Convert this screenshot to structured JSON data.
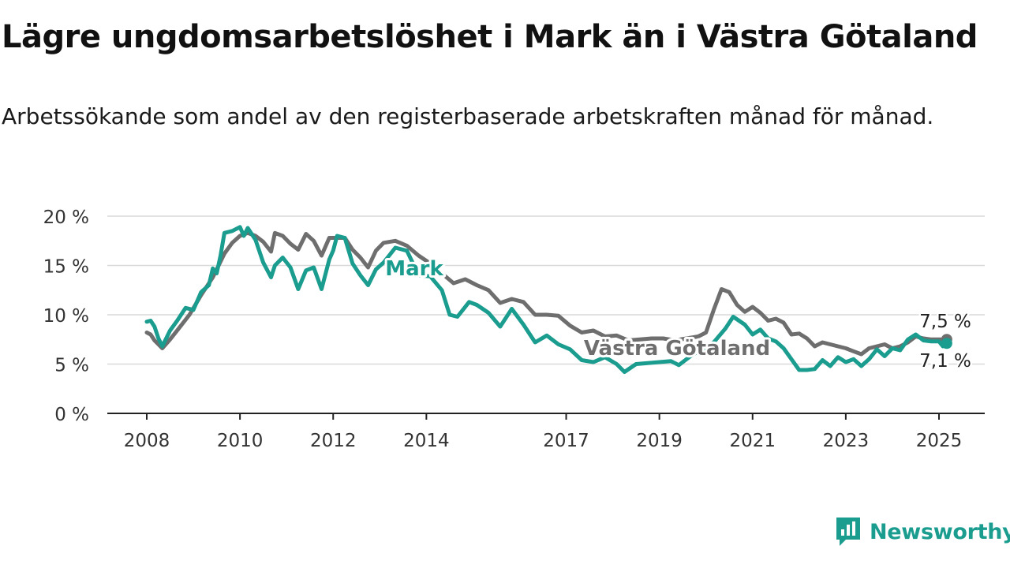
{
  "header": {
    "title": "Lägre ungdomsarbetslöshet i Mark än i Västra Götaland",
    "subtitle": "Arbetssökande som andel av den registerbaserade arbetskraften månad för månad."
  },
  "brand": {
    "name": "Newsworthy",
    "icon": "newsworthy-logo-icon",
    "color": "#1a9c8f"
  },
  "chart_data": {
    "type": "line",
    "title": "Lägre ungdomsarbetslöshet i Mark än i Västra Götaland",
    "subtitle": "Arbetssökande som andel av den registerbaserade arbetskraften månad för månad.",
    "xlabel": "",
    "ylabel": "",
    "x_ticks": [
      "2008",
      "2010",
      "2012",
      "2014",
      "2017",
      "2019",
      "2021",
      "2023",
      "2025"
    ],
    "y_ticks": [
      "0 %",
      "5 %",
      "10 %",
      "15 %",
      "20 %"
    ],
    "xlim": [
      "2008-01",
      "2025-03"
    ],
    "ylim": [
      0,
      20
    ],
    "grid": "horizontal",
    "legend": "inline labels",
    "series": [
      {
        "name": "Västra Götaland",
        "color": "#6e6e6e",
        "end_label": "7,5 %",
        "points": [
          [
            "2008-01",
            8.2
          ],
          [
            "2008-02",
            8.0
          ],
          [
            "2008-03",
            7.4
          ],
          [
            "2008-04",
            7.0
          ],
          [
            "2008-05",
            6.6
          ],
          [
            "2008-07",
            7.5
          ],
          [
            "2008-09",
            8.5
          ],
          [
            "2008-12",
            10.0
          ],
          [
            "2009-03",
            12.0
          ],
          [
            "2009-06",
            13.8
          ],
          [
            "2009-09",
            16.2
          ],
          [
            "2009-11",
            17.3
          ],
          [
            "2010-01",
            18.0
          ],
          [
            "2010-03",
            18.3
          ],
          [
            "2010-05",
            18.0
          ],
          [
            "2010-07",
            17.4
          ],
          [
            "2010-09",
            16.4
          ],
          [
            "2010-10",
            18.3
          ],
          [
            "2010-12",
            18.0
          ],
          [
            "2011-02",
            17.2
          ],
          [
            "2011-04",
            16.6
          ],
          [
            "2011-06",
            18.2
          ],
          [
            "2011-08",
            17.5
          ],
          [
            "2011-10",
            16.0
          ],
          [
            "2011-12",
            17.8
          ],
          [
            "2012-02",
            17.8
          ],
          [
            "2012-04",
            17.8
          ],
          [
            "2012-06",
            16.6
          ],
          [
            "2012-08",
            15.8
          ],
          [
            "2012-10",
            14.8
          ],
          [
            "2012-12",
            16.5
          ],
          [
            "2013-02",
            17.3
          ],
          [
            "2013-05",
            17.5
          ],
          [
            "2013-08",
            17.0
          ],
          [
            "2013-11",
            16.0
          ],
          [
            "2014-02",
            15.2
          ],
          [
            "2014-05",
            14.2
          ],
          [
            "2014-08",
            13.2
          ],
          [
            "2014-11",
            13.6
          ],
          [
            "2015-02",
            13.0
          ],
          [
            "2015-05",
            12.5
          ],
          [
            "2015-08",
            11.2
          ],
          [
            "2015-11",
            11.6
          ],
          [
            "2016-02",
            11.3
          ],
          [
            "2016-05",
            10.0
          ],
          [
            "2016-08",
            10.0
          ],
          [
            "2016-11",
            9.9
          ],
          [
            "2017-02",
            8.9
          ],
          [
            "2017-05",
            8.2
          ],
          [
            "2017-08",
            8.4
          ],
          [
            "2017-11",
            7.8
          ],
          [
            "2018-02",
            7.9
          ],
          [
            "2018-05",
            7.4
          ],
          [
            "2018-08",
            7.5
          ],
          [
            "2018-11",
            7.6
          ],
          [
            "2019-02",
            7.6
          ],
          [
            "2019-05",
            7.4
          ],
          [
            "2019-08",
            7.6
          ],
          [
            "2019-11",
            7.8
          ],
          [
            "2020-01",
            8.2
          ],
          [
            "2020-03",
            10.5
          ],
          [
            "2020-05",
            12.6
          ],
          [
            "2020-07",
            12.3
          ],
          [
            "2020-09",
            11.0
          ],
          [
            "2020-11",
            10.3
          ],
          [
            "2021-01",
            10.8
          ],
          [
            "2021-03",
            10.2
          ],
          [
            "2021-05",
            9.4
          ],
          [
            "2021-07",
            9.6
          ],
          [
            "2021-09",
            9.2
          ],
          [
            "2021-11",
            8.0
          ],
          [
            "2022-01",
            8.1
          ],
          [
            "2022-03",
            7.6
          ],
          [
            "2022-05",
            6.8
          ],
          [
            "2022-07",
            7.2
          ],
          [
            "2022-09",
            7.0
          ],
          [
            "2022-11",
            6.8
          ],
          [
            "2023-01",
            6.6
          ],
          [
            "2023-03",
            6.3
          ],
          [
            "2023-05",
            6.0
          ],
          [
            "2023-07",
            6.6
          ],
          [
            "2023-09",
            6.8
          ],
          [
            "2023-11",
            7.0
          ],
          [
            "2024-01",
            6.6
          ],
          [
            "2024-03",
            6.8
          ],
          [
            "2024-05",
            7.2
          ],
          [
            "2024-07",
            7.8
          ],
          [
            "2024-09",
            7.6
          ],
          [
            "2024-11",
            7.5
          ],
          [
            "2025-01",
            7.5
          ],
          [
            "2025-03",
            7.5
          ]
        ]
      },
      {
        "name": "Mark",
        "color": "#1a9c8f",
        "end_label": "7,1 %",
        "points": [
          [
            "2008-01",
            9.3
          ],
          [
            "2008-02",
            9.4
          ],
          [
            "2008-03",
            8.8
          ],
          [
            "2008-04",
            7.6
          ],
          [
            "2008-05",
            6.8
          ],
          [
            "2008-07",
            8.4
          ],
          [
            "2008-09",
            9.5
          ],
          [
            "2008-11",
            10.7
          ],
          [
            "2009-01",
            10.5
          ],
          [
            "2009-03",
            12.3
          ],
          [
            "2009-05",
            13.0
          ],
          [
            "2009-06",
            14.7
          ],
          [
            "2009-07",
            14.2
          ],
          [
            "2009-08",
            16.0
          ],
          [
            "2009-09",
            18.3
          ],
          [
            "2009-11",
            18.5
          ],
          [
            "2010-01",
            18.9
          ],
          [
            "2010-02",
            18.0
          ],
          [
            "2010-03",
            18.8
          ],
          [
            "2010-05",
            17.6
          ],
          [
            "2010-07",
            15.3
          ],
          [
            "2010-09",
            13.8
          ],
          [
            "2010-10",
            15.0
          ],
          [
            "2010-12",
            15.8
          ],
          [
            "2011-02",
            14.8
          ],
          [
            "2011-04",
            12.6
          ],
          [
            "2011-06",
            14.5
          ],
          [
            "2011-08",
            14.8
          ],
          [
            "2011-10",
            12.6
          ],
          [
            "2011-12",
            15.6
          ],
          [
            "2012-01",
            16.5
          ],
          [
            "2012-02",
            18.0
          ],
          [
            "2012-04",
            17.8
          ],
          [
            "2012-06",
            15.2
          ],
          [
            "2012-08",
            14.0
          ],
          [
            "2012-10",
            13.0
          ],
          [
            "2012-12",
            14.6
          ],
          [
            "2013-02",
            15.3
          ],
          [
            "2013-05",
            16.8
          ],
          [
            "2013-08",
            16.5
          ],
          [
            "2013-11",
            14.0
          ],
          [
            "2014-02",
            13.9
          ],
          [
            "2014-05",
            12.5
          ],
          [
            "2014-07",
            10.0
          ],
          [
            "2014-09",
            9.8
          ],
          [
            "2014-12",
            11.3
          ],
          [
            "2015-02",
            11.0
          ],
          [
            "2015-05",
            10.2
          ],
          [
            "2015-08",
            8.8
          ],
          [
            "2015-11",
            10.6
          ],
          [
            "2016-02",
            9.0
          ],
          [
            "2016-05",
            7.2
          ],
          [
            "2016-08",
            7.9
          ],
          [
            "2016-11",
            7.0
          ],
          [
            "2017-02",
            6.5
          ],
          [
            "2017-05",
            5.4
          ],
          [
            "2017-08",
            5.2
          ],
          [
            "2017-11",
            5.7
          ],
          [
            "2018-02",
            5.0
          ],
          [
            "2018-04",
            4.2
          ],
          [
            "2018-07",
            5.0
          ],
          [
            "2018-10",
            5.1
          ],
          [
            "2019-01",
            5.2
          ],
          [
            "2019-04",
            5.3
          ],
          [
            "2019-06",
            4.9
          ],
          [
            "2019-09",
            5.8
          ],
          [
            "2019-12",
            6.5
          ],
          [
            "2020-03",
            7.2
          ],
          [
            "2020-06",
            8.6
          ],
          [
            "2020-08",
            9.8
          ],
          [
            "2020-11",
            9.0
          ],
          [
            "2021-01",
            8.0
          ],
          [
            "2021-03",
            8.5
          ],
          [
            "2021-05",
            7.6
          ],
          [
            "2021-07",
            7.3
          ],
          [
            "2021-09",
            6.6
          ],
          [
            "2021-11",
            5.5
          ],
          [
            "2022-01",
            4.4
          ],
          [
            "2022-03",
            4.4
          ],
          [
            "2022-05",
            4.5
          ],
          [
            "2022-07",
            5.4
          ],
          [
            "2022-09",
            4.8
          ],
          [
            "2022-11",
            5.7
          ],
          [
            "2023-01",
            5.2
          ],
          [
            "2023-03",
            5.5
          ],
          [
            "2023-05",
            4.8
          ],
          [
            "2023-07",
            5.5
          ],
          [
            "2023-09",
            6.5
          ],
          [
            "2023-11",
            5.8
          ],
          [
            "2024-01",
            6.6
          ],
          [
            "2024-03",
            6.4
          ],
          [
            "2024-05",
            7.5
          ],
          [
            "2024-07",
            8.0
          ],
          [
            "2024-09",
            7.4
          ],
          [
            "2024-11",
            7.3
          ],
          [
            "2025-01",
            7.3
          ],
          [
            "2025-02",
            6.8
          ],
          [
            "2025-03",
            7.1
          ]
        ]
      }
    ]
  }
}
